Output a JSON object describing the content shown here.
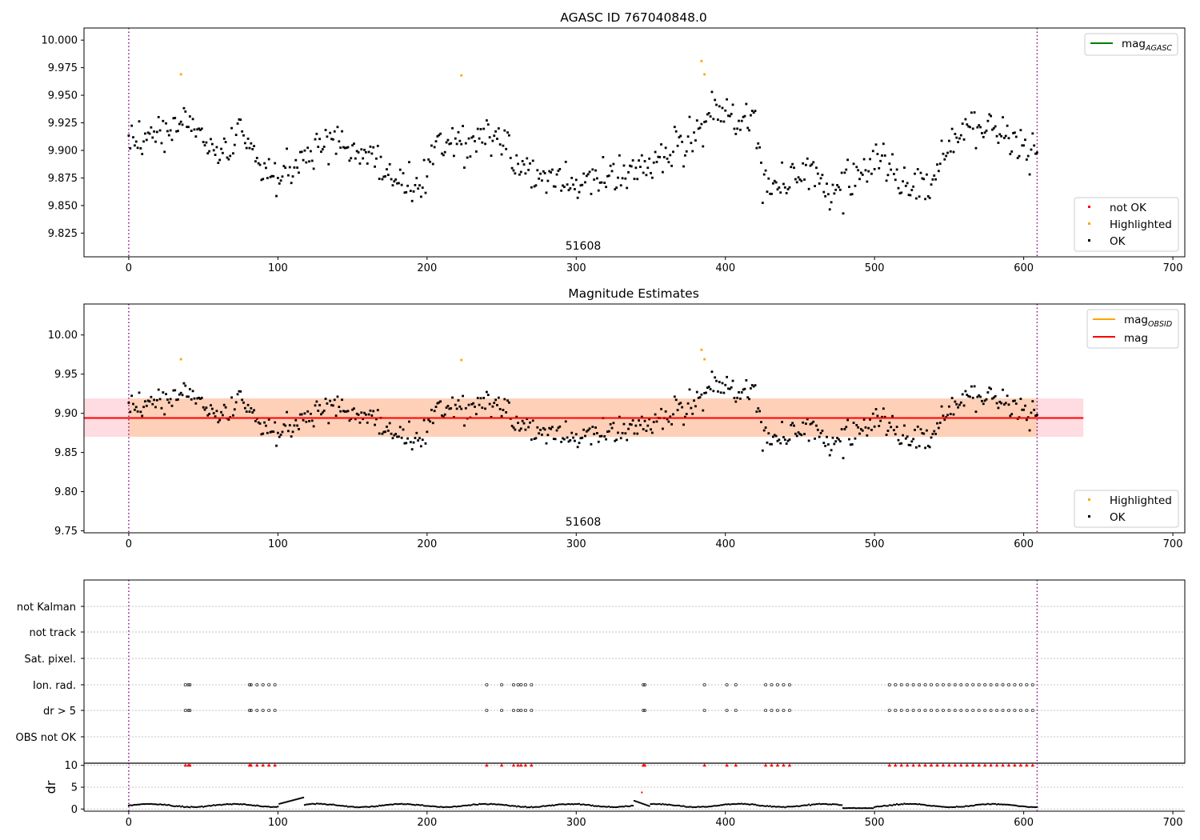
{
  "chart_data": [
    {
      "type": "scatter",
      "title": "AGASC ID 767040848.0",
      "annotation": "51608",
      "xlim": [
        -30,
        708
      ],
      "ylim": [
        9.8035,
        10.011
      ],
      "xticks": [
        "0",
        "100",
        "200",
        "300",
        "400",
        "500",
        "600",
        "700"
      ],
      "yticks": [
        "9.825",
        "9.850",
        "9.875",
        "9.900",
        "9.925",
        "9.950",
        "9.975",
        "10.000"
      ],
      "vlines": [
        0,
        609
      ],
      "legend_upper": {
        "position": "top-right",
        "entries": [
          {
            "label": "mag",
            "sub": "AGASC",
            "color": "#008000"
          }
        ]
      },
      "legend_lower": {
        "position": "bottom-right",
        "entries": [
          {
            "label": "not OK",
            "color": "#ff0000"
          },
          {
            "label": "Highlighted",
            "color": "#ffa500"
          },
          {
            "label": "OK",
            "color": "#000000"
          }
        ]
      },
      "series": [
        {
          "name": "OK",
          "color": "#000000",
          "segments": [
            [
              0,
              9.905
            ],
            [
              40,
              9.925
            ],
            [
              60,
              9.9
            ],
            [
              80,
              9.915
            ],
            [
              90,
              9.875
            ],
            [
              110,
              9.88
            ],
            [
              130,
              9.905
            ],
            [
              160,
              9.9
            ],
            [
              175,
              9.87
            ],
            [
              195,
              9.862
            ],
            [
              205,
              9.905
            ],
            [
              230,
              9.905
            ],
            [
              250,
              9.915
            ],
            [
              260,
              9.885
            ],
            [
              300,
              9.87
            ],
            [
              340,
              9.88
            ],
            [
              360,
              9.895
            ],
            [
              380,
              9.91
            ],
            [
              390,
              9.935
            ],
            [
              420,
              9.925
            ],
            [
              425,
              9.87
            ],
            [
              460,
              9.875
            ],
            [
              470,
              9.86
            ],
            [
              490,
              9.88
            ],
            [
              505,
              9.89
            ],
            [
              520,
              9.87
            ],
            [
              535,
              9.86
            ],
            [
              550,
              9.9
            ],
            [
              565,
              9.925
            ],
            [
              600,
              9.905
            ],
            [
              609,
              9.895
            ]
          ]
        },
        {
          "name": "Highlighted",
          "color": "#ffa500",
          "points": [
            [
              35,
              9.969
            ],
            [
              223,
              9.968
            ],
            [
              384,
              9.981
            ],
            [
              386,
              9.969
            ]
          ]
        }
      ]
    },
    {
      "type": "scatter",
      "title": "Magnitude Estimates",
      "annotation": "51608",
      "xlim": [
        -30,
        708
      ],
      "ylim": [
        9.7475,
        10.0395
      ],
      "xticks": [
        "0",
        "100",
        "200",
        "300",
        "400",
        "500",
        "600",
        "700"
      ],
      "yticks": [
        "9.75",
        "9.80",
        "9.85",
        "9.90",
        "9.95",
        "10.00"
      ],
      "vlines": [
        0,
        609
      ],
      "mag_line": 9.894,
      "band_outer": [
        -30,
        640,
        9.87,
        9.919
      ],
      "band_inner": [
        0,
        609,
        9.87,
        9.919
      ],
      "legend_upper": {
        "position": "top-right",
        "entries": [
          {
            "label": "mag",
            "sub": "OBSID",
            "color": "#ffa500"
          },
          {
            "label": "mag",
            "sub": "",
            "color": "#ff0000"
          }
        ]
      },
      "legend_lower": {
        "position": "bottom-right",
        "entries": [
          {
            "label": "Highlighted",
            "color": "#ffa500"
          },
          {
            "label": "OK",
            "color": "#000000"
          }
        ]
      }
    },
    {
      "type": "scatter",
      "xlim": [
        -30,
        708
      ],
      "xticks": [
        "0",
        "100",
        "200",
        "300",
        "400",
        "500",
        "600",
        "700"
      ],
      "flag_labels": [
        "not Kalman",
        "not track",
        "Sat. pixel.",
        "Ion. rad.",
        "dr > 5",
        "OBS not OK"
      ],
      "flag_points": {
        "Ion. rad.": [
          38,
          40,
          41,
          81,
          82,
          86,
          90,
          94,
          98,
          240,
          250,
          258,
          261,
          263,
          266,
          270,
          345,
          346,
          386,
          401,
          407,
          427,
          431,
          435,
          439,
          443,
          510,
          514,
          518,
          522,
          526,
          530,
          534,
          538,
          542,
          546,
          550,
          554,
          558,
          562,
          566,
          570,
          574,
          578,
          582,
          586,
          590,
          594,
          598,
          602,
          606
        ],
        "dr > 5": [
          38,
          40,
          41,
          81,
          82,
          86,
          90,
          94,
          98,
          240,
          250,
          258,
          261,
          263,
          266,
          270,
          345,
          346,
          386,
          401,
          407,
          427,
          431,
          435,
          439,
          443,
          510,
          514,
          518,
          522,
          526,
          530,
          534,
          538,
          542,
          546,
          550,
          554,
          558,
          562,
          566,
          570,
          574,
          578,
          582,
          586,
          590,
          594,
          598,
          602,
          606
        ]
      },
      "dr_ylabel": "dr",
      "dr_ylim": [
        -0.5,
        10.5
      ],
      "dr_yticks": [
        "0",
        "5",
        "10"
      ],
      "dr_clipped_value": 10,
      "dr_outlier": [
        344,
        3.8
      ]
    }
  ]
}
